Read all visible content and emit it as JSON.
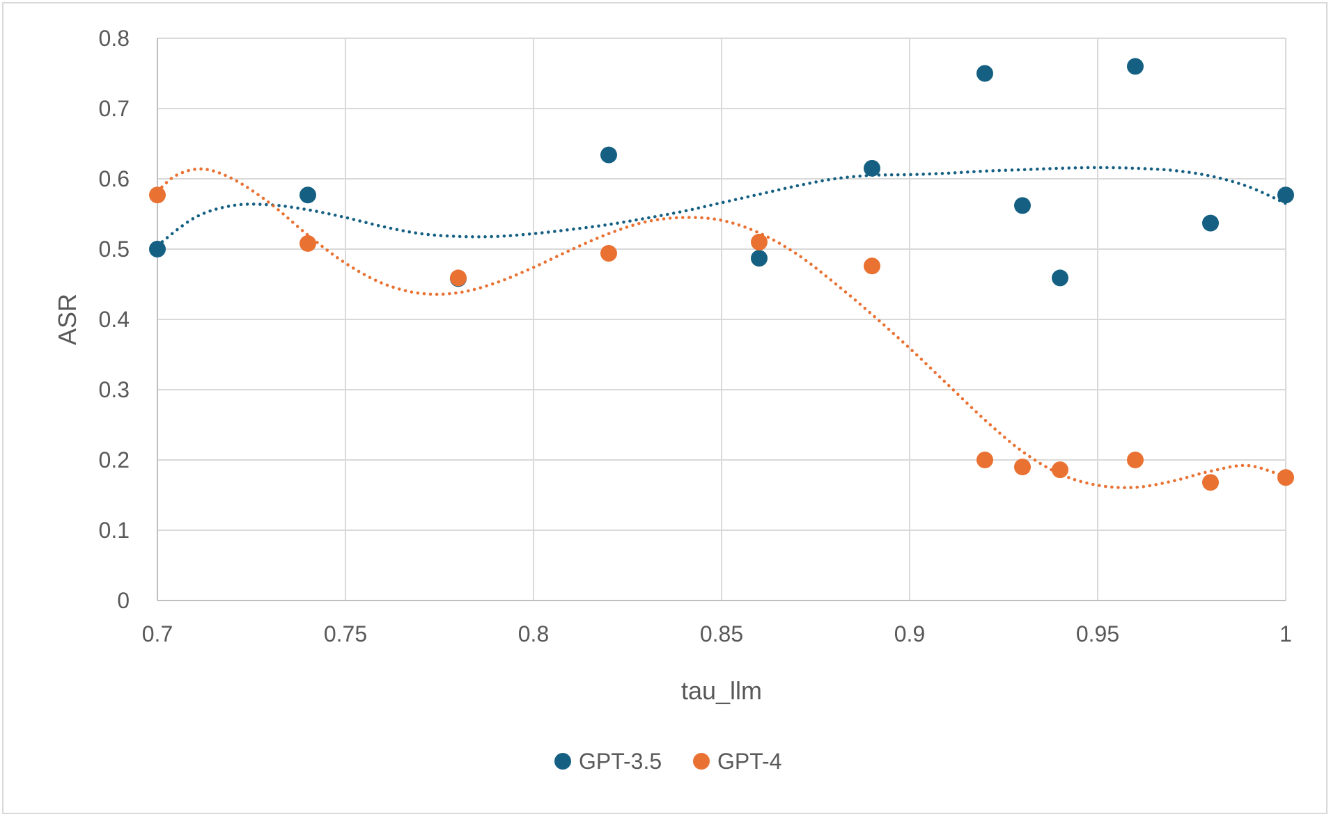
{
  "chart_data": {
    "type": "scatter",
    "xlabel": "tau_llm",
    "ylabel": "ASR",
    "xlim": [
      0.7,
      1.0
    ],
    "ylim": [
      0,
      0.8
    ],
    "x_ticks": [
      "0.7",
      "0.75",
      "0.8",
      "0.85",
      "0.9",
      "0.95",
      "1"
    ],
    "y_ticks": [
      "0",
      "0.1",
      "0.2",
      "0.3",
      "0.4",
      "0.5",
      "0.6",
      "0.7",
      "0.8"
    ],
    "grid": true,
    "legend_position": "bottom",
    "trendline": "polynomial, dotted",
    "series": [
      {
        "name": "GPT-3.5",
        "color": "#156082",
        "points": [
          [
            0.7,
            0.5
          ],
          [
            0.74,
            0.577
          ],
          [
            0.78,
            0.458
          ],
          [
            0.82,
            0.634
          ],
          [
            0.86,
            0.487
          ],
          [
            0.89,
            0.615
          ],
          [
            0.92,
            0.75
          ],
          [
            0.93,
            0.562
          ],
          [
            0.94,
            0.459
          ],
          [
            0.96,
            0.76
          ],
          [
            0.98,
            0.537
          ],
          [
            1.0,
            0.577
          ]
        ],
        "trend": [
          [
            0.7,
            0.505
          ],
          [
            0.71,
            0.545
          ],
          [
            0.72,
            0.562
          ],
          [
            0.73,
            0.563
          ],
          [
            0.74,
            0.556
          ],
          [
            0.75,
            0.545
          ],
          [
            0.76,
            0.532
          ],
          [
            0.77,
            0.522
          ],
          [
            0.78,
            0.518
          ],
          [
            0.79,
            0.518
          ],
          [
            0.8,
            0.522
          ],
          [
            0.81,
            0.528
          ],
          [
            0.82,
            0.535
          ],
          [
            0.83,
            0.544
          ],
          [
            0.84,
            0.554
          ],
          [
            0.85,
            0.566
          ],
          [
            0.86,
            0.578
          ],
          [
            0.87,
            0.59
          ],
          [
            0.88,
            0.6
          ],
          [
            0.89,
            0.605
          ],
          [
            0.9,
            0.606
          ],
          [
            0.91,
            0.608
          ],
          [
            0.92,
            0.611
          ],
          [
            0.93,
            0.613
          ],
          [
            0.94,
            0.615
          ],
          [
            0.95,
            0.616
          ],
          [
            0.96,
            0.615
          ],
          [
            0.97,
            0.612
          ],
          [
            0.98,
            0.604
          ],
          [
            0.99,
            0.589
          ],
          [
            1.0,
            0.565
          ]
        ]
      },
      {
        "name": "GPT-4",
        "color": "#E97132",
        "points": [
          [
            0.7,
            0.577
          ],
          [
            0.74,
            0.508
          ],
          [
            0.78,
            0.459
          ],
          [
            0.82,
            0.494
          ],
          [
            0.86,
            0.51
          ],
          [
            0.89,
            0.476
          ],
          [
            0.92,
            0.2
          ],
          [
            0.93,
            0.19
          ],
          [
            0.94,
            0.186
          ],
          [
            0.96,
            0.2
          ],
          [
            0.98,
            0.168
          ],
          [
            1.0,
            0.175
          ]
        ],
        "trend": [
          [
            0.7,
            0.582
          ],
          [
            0.705,
            0.605
          ],
          [
            0.712,
            0.614
          ],
          [
            0.72,
            0.6
          ],
          [
            0.73,
            0.565
          ],
          [
            0.74,
            0.52
          ],
          [
            0.75,
            0.48
          ],
          [
            0.76,
            0.451
          ],
          [
            0.77,
            0.437
          ],
          [
            0.78,
            0.438
          ],
          [
            0.79,
            0.452
          ],
          [
            0.8,
            0.474
          ],
          [
            0.81,
            0.499
          ],
          [
            0.82,
            0.522
          ],
          [
            0.83,
            0.539
          ],
          [
            0.84,
            0.545
          ],
          [
            0.85,
            0.541
          ],
          [
            0.86,
            0.523
          ],
          [
            0.87,
            0.493
          ],
          [
            0.88,
            0.452
          ],
          [
            0.89,
            0.407
          ],
          [
            0.9,
            0.359
          ],
          [
            0.91,
            0.308
          ],
          [
            0.92,
            0.257
          ],
          [
            0.93,
            0.212
          ],
          [
            0.94,
            0.18
          ],
          [
            0.95,
            0.164
          ],
          [
            0.96,
            0.161
          ],
          [
            0.97,
            0.17
          ],
          [
            0.98,
            0.184
          ],
          [
            0.99,
            0.192
          ],
          [
            1.0,
            0.176
          ]
        ]
      }
    ]
  }
}
